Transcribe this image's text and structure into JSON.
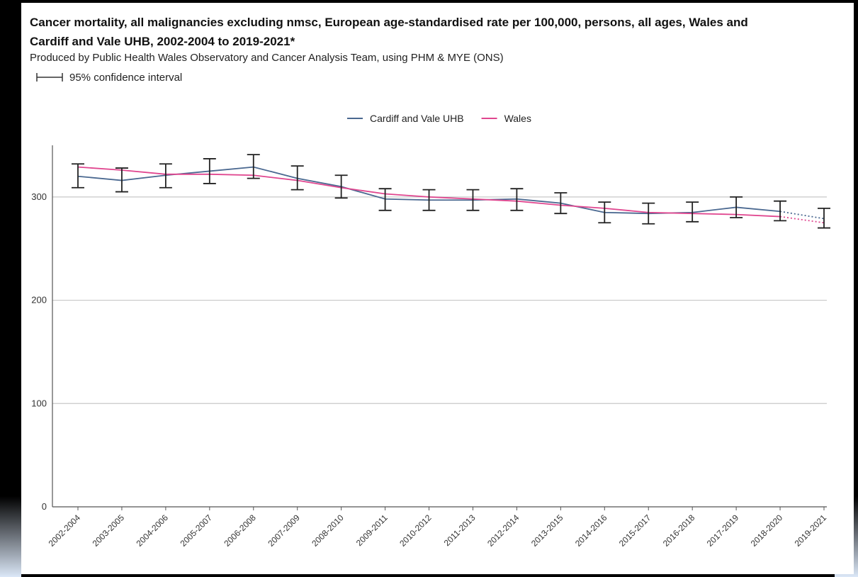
{
  "chart_data": {
    "type": "line",
    "title": "Cancer mortality, all malignancies excluding nmsc, European age-standardised rate per 100,000, persons, all ages, Wales and Cardiff and Vale UHB, 2002-2004 to 2019-2021*",
    "subtitle": "Produced by Public Health Wales Observatory and Cancer Analysis Team, using PHM & MYE (ONS)",
    "ci_legend": "95% confidence interval",
    "legend_placement": "top-center",
    "categories": [
      "2002-2004",
      "2003-2005",
      "2004-2006",
      "2005-2007",
      "2006-2008",
      "2007-2009",
      "2008-2010",
      "2009-2011",
      "2010-2012",
      "2011-2013",
      "2012-2014",
      "2013-2015",
      "2014-2016",
      "2015-2017",
      "2016-2018",
      "2017-2019",
      "2018-2020",
      "2019-2021"
    ],
    "ylim": [
      0,
      350
    ],
    "yticks": [
      0,
      100,
      200,
      300
    ],
    "grid": true,
    "series": [
      {
        "name": "Cardiff and Vale UHB",
        "color": "#4a6890",
        "values": [
          320,
          316,
          321,
          325,
          329,
          318,
          310,
          298,
          297,
          297,
          298,
          294,
          285,
          284,
          285,
          290,
          286,
          279
        ],
        "ci_low": [
          309,
          305,
          309,
          313,
          318,
          307,
          299,
          287,
          287,
          287,
          287,
          284,
          275,
          274,
          276,
          280,
          277,
          270
        ],
        "ci_high": [
          332,
          328,
          332,
          337,
          341,
          330,
          321,
          308,
          307,
          307,
          308,
          304,
          295,
          294,
          295,
          300,
          296,
          289
        ]
      },
      {
        "name": "Wales",
        "color": "#e0468f",
        "values": [
          329,
          326,
          322,
          322,
          321,
          316,
          309,
          303,
          300,
          298,
          296,
          292,
          289,
          285,
          284,
          283,
          281,
          275
        ]
      }
    ],
    "dotted_last_segment": true
  }
}
